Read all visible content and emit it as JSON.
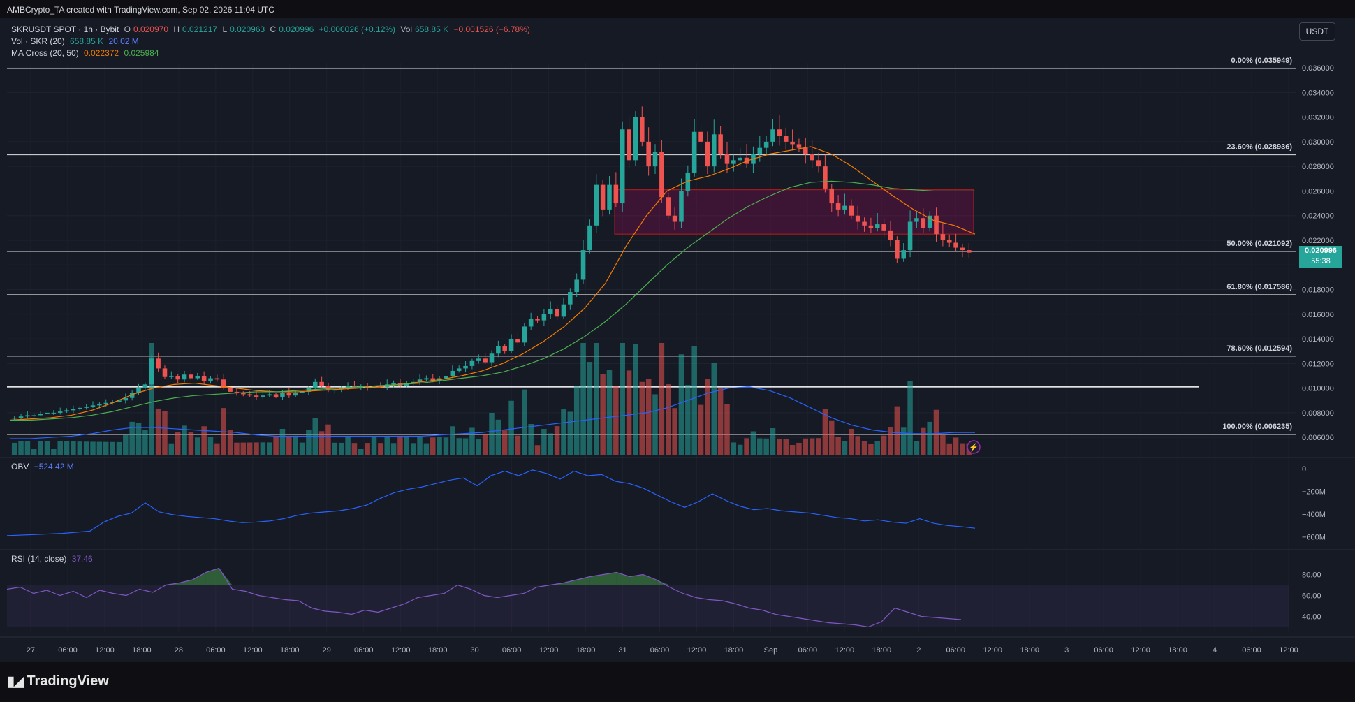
{
  "header": {
    "attribution": "AMBCrypto_TA created with TradingView.com, Sep 02, 2026 11:04 UTC"
  },
  "currency_button": "USDT",
  "legend": {
    "symbol": "SKRUSDT SPOT · 1h · Bybit",
    "o_label": "O",
    "o": "0.020970",
    "h_label": "H",
    "h": "0.021217",
    "l_label": "L",
    "l": "0.020963",
    "c_label": "C",
    "c": "0.020996",
    "change": "+0.000026 (+0.12%)",
    "vol_label": "Vol",
    "vol": "658.85 K",
    "vol_change": "−0.001526 (−6.78%)",
    "vol_ind_label": "Vol · SKR (20)",
    "vol_ind_1": "658.85 K",
    "vol_ind_2": "20.02 M",
    "ma_label": "MA Cross (20, 50)",
    "ma_1": "0.022372",
    "ma_2": "0.025984",
    "obv_label": "OBV",
    "obv": "−524.42 M",
    "rsi_label": "RSI (14, close)",
    "rsi": "37.46"
  },
  "price_tag": {
    "value": "0.020996",
    "countdown": "55:38"
  },
  "brand": "TradingView",
  "colors": {
    "up": "#26a69a",
    "down": "#ef5350",
    "ma20": "#f57c00",
    "ma50": "#4caf50",
    "obv": "#2962ff",
    "rsi": "#7e57c2"
  },
  "chart_data": [
    {
      "type": "candlestick",
      "series_name": "SKRUSDT SPOT 1h Bybit",
      "y_ticks": [
        "0.036000",
        "0.034000",
        "0.032000",
        "0.030000",
        "0.028000",
        "0.026000",
        "0.024000",
        "0.022000",
        "0.020000",
        "0.018000",
        "0.016000",
        "0.014000",
        "0.012000",
        "0.010000",
        "0.008000",
        "0.006000"
      ],
      "ylim": [
        0.0055,
        0.0364
      ],
      "x_ticks": [
        "27",
        "06:00",
        "12:00",
        "18:00",
        "28",
        "06:00",
        "12:00",
        "18:00",
        "29",
        "06:00",
        "12:00",
        "18:00",
        "30",
        "06:00",
        "12:00",
        "18:00",
        "31",
        "06:00",
        "12:00",
        "18:00",
        "Sep",
        "06:00",
        "12:00",
        "18:00",
        "2",
        "06:00",
        "12:00",
        "18:00",
        "3",
        "06:00",
        "12:00",
        "18:00",
        "4",
        "06:00",
        "12:00"
      ],
      "fibonacci": [
        {
          "label": "0.00% (0.035949)",
          "value": 0.035949
        },
        {
          "label": "23.60% (0.028936)",
          "value": 0.028936
        },
        {
          "label": "50.00% (0.021092)",
          "value": 0.021092
        },
        {
          "label": "61.80% (0.017586)",
          "value": 0.017586
        },
        {
          "label": "78.60% (0.012594)",
          "value": 0.012594
        },
        {
          "label": "100.00% (0.006235)",
          "value": 0.006235
        }
      ],
      "horizontal_line": 0.0101,
      "zone": {
        "top": 0.0261,
        "bottom": 0.0225
      },
      "close_series": [
        0.0076,
        0.0077,
        0.0078,
        0.0078,
        0.0079,
        0.008,
        0.008,
        0.0081,
        0.0082,
        0.0083,
        0.0084,
        0.0085,
        0.0086,
        0.0087,
        0.0088,
        0.0089,
        0.009,
        0.0092,
        0.0096,
        0.01,
        0.0103,
        0.0124,
        0.0116,
        0.0109,
        0.011,
        0.0107,
        0.0111,
        0.0108,
        0.011,
        0.0106,
        0.0108,
        0.0107,
        0.01,
        0.0097,
        0.0096,
        0.0095,
        0.0094,
        0.0093,
        0.0094,
        0.0095,
        0.0093,
        0.0096,
        0.0094,
        0.0096,
        0.0097,
        0.01,
        0.0105,
        0.0102,
        0.0098,
        0.0099,
        0.01,
        0.0102,
        0.0101,
        0.0101,
        0.01,
        0.0102,
        0.0101,
        0.0103,
        0.0104,
        0.0102,
        0.0104,
        0.0105,
        0.0107,
        0.0108,
        0.0106,
        0.0108,
        0.011,
        0.0114,
        0.0116,
        0.0118,
        0.0122,
        0.0124,
        0.0121,
        0.0128,
        0.0134,
        0.013,
        0.014,
        0.0137,
        0.015,
        0.0156,
        0.0155,
        0.016,
        0.0164,
        0.0158,
        0.0168,
        0.0178,
        0.0188,
        0.0212,
        0.0232,
        0.0265,
        0.0245,
        0.0265,
        0.025,
        0.031,
        0.0285,
        0.032,
        0.03,
        0.028,
        0.0292,
        0.0255,
        0.024,
        0.0235,
        0.026,
        0.0275,
        0.0308,
        0.03,
        0.028,
        0.0306,
        0.029,
        0.0282,
        0.0285,
        0.0287,
        0.0282,
        0.029,
        0.0295,
        0.03,
        0.031,
        0.0305,
        0.03,
        0.0298,
        0.0295,
        0.029,
        0.0285,
        0.028,
        0.0262,
        0.025,
        0.0245,
        0.0248,
        0.024,
        0.0235,
        0.0232,
        0.023,
        0.0233,
        0.0228,
        0.022,
        0.0205,
        0.0212,
        0.0235,
        0.0238,
        0.023,
        0.024,
        0.0225,
        0.022,
        0.0218,
        0.0214,
        0.0212,
        0.021
      ]
    },
    {
      "type": "line",
      "series": [
        {
          "name": "MA 20",
          "values": [
            0.0074,
            0.0075,
            0.0076,
            0.0078,
            0.0082,
            0.0088,
            0.0095,
            0.01,
            0.0103,
            0.0104,
            0.0102,
            0.01,
            0.0098,
            0.0097,
            0.0097,
            0.0098,
            0.0099,
            0.01,
            0.0101,
            0.0103,
            0.0105,
            0.0107,
            0.011,
            0.0114,
            0.012,
            0.0128,
            0.0138,
            0.015,
            0.0165,
            0.0185,
            0.0215,
            0.024,
            0.026,
            0.0268,
            0.0272,
            0.0278,
            0.0285,
            0.029,
            0.0293,
            0.0296,
            0.029,
            0.028,
            0.0268,
            0.0256,
            0.0245,
            0.0236,
            0.0232,
            0.0225
          ]
        },
        {
          "name": "MA 50",
          "values": [
            0.0074,
            0.0074,
            0.0075,
            0.0076,
            0.0078,
            0.0081,
            0.0085,
            0.0089,
            0.0092,
            0.0094,
            0.0095,
            0.0096,
            0.0097,
            0.0097,
            0.0098,
            0.0099,
            0.01,
            0.0101,
            0.0102,
            0.0103,
            0.0104,
            0.0106,
            0.0108,
            0.011,
            0.0113,
            0.0118,
            0.0124,
            0.0132,
            0.0142,
            0.0154,
            0.0168,
            0.0184,
            0.02,
            0.0214,
            0.0226,
            0.0238,
            0.0248,
            0.0256,
            0.0263,
            0.0267,
            0.0268,
            0.0267,
            0.0265,
            0.0262,
            0.0261,
            0.026,
            0.026,
            0.026
          ]
        },
        {
          "name": "Volume MA (20)",
          "values": [
            0.0059,
            0.0059,
            0.006,
            0.0061,
            0.0063,
            0.0066,
            0.0068,
            0.0068,
            0.0067,
            0.0066,
            0.0065,
            0.0064,
            0.0062,
            0.0061,
            0.0061,
            0.0061,
            0.0061,
            0.0061,
            0.0061,
            0.0061,
            0.0061,
            0.0062,
            0.0063,
            0.0064,
            0.0066,
            0.0068,
            0.007,
            0.0072,
            0.0074,
            0.0076,
            0.0078,
            0.008,
            0.0084,
            0.009,
            0.0096,
            0.01,
            0.0101,
            0.0098,
            0.0092,
            0.0084,
            0.0076,
            0.007,
            0.0066,
            0.0064,
            0.0063,
            0.0063,
            0.0064,
            0.0064
          ]
        }
      ]
    },
    {
      "type": "line",
      "series_name": "OBV",
      "y_ticks": [
        "0",
        "−200M",
        "−400M",
        "−600M"
      ],
      "ylim": [
        -640,
        20
      ],
      "values": [
        -590,
        -585,
        -580,
        -575,
        -570,
        -560,
        -550,
        -470,
        -420,
        -390,
        -300,
        -380,
        -405,
        -420,
        -430,
        -440,
        -460,
        -475,
        -470,
        -460,
        -440,
        -410,
        -390,
        -380,
        -370,
        -350,
        -320,
        -260,
        -210,
        -180,
        -160,
        -130,
        -100,
        -80,
        -150,
        -60,
        -20,
        -60,
        -10,
        -40,
        -90,
        -20,
        -60,
        -50,
        -110,
        -130,
        -170,
        -230,
        -290,
        -340,
        -290,
        -220,
        -280,
        -330,
        -360,
        -350,
        -370,
        -380,
        -390,
        -410,
        -430,
        -440,
        -460,
        -450,
        -470,
        -480,
        -440,
        -480,
        -500,
        -510,
        -524
      ]
    },
    {
      "type": "line",
      "series_name": "RSI (14, close)",
      "y_ticks": [
        "80.00",
        "60.00",
        "40.00"
      ],
      "ylim": [
        25,
        95
      ],
      "bands": [
        70,
        50,
        30
      ],
      "values": [
        66,
        68,
        62,
        65,
        60,
        64,
        58,
        65,
        62,
        60,
        66,
        63,
        70,
        72,
        75,
        82,
        86,
        66,
        64,
        60,
        58,
        56,
        55,
        48,
        45,
        44,
        42,
        46,
        44,
        48,
        52,
        58,
        60,
        62,
        70,
        66,
        60,
        58,
        60,
        62,
        68,
        70,
        72,
        75,
        78,
        80,
        82,
        78,
        80,
        75,
        68,
        62,
        58,
        56,
        55,
        52,
        48,
        46,
        42,
        40,
        38,
        36,
        34,
        33,
        32,
        30,
        35,
        48,
        44,
        40,
        39,
        38,
        37
      ]
    }
  ]
}
